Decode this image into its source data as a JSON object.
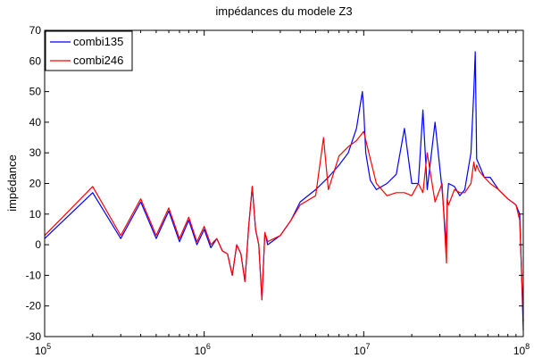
{
  "chart_data": {
    "type": "line",
    "title": "impédances du modele Z3",
    "xlabel": "",
    "ylabel": "impédance",
    "xscale": "log",
    "xlim": [
      100000,
      100000000
    ],
    "ylim": [
      -30,
      70
    ],
    "grid": false,
    "legend_position": "top-left",
    "xticks": [
      {
        "value": 100000,
        "base": "10",
        "exp": "5"
      },
      {
        "value": 1000000,
        "base": "10",
        "exp": "6"
      },
      {
        "value": 10000000,
        "base": "10",
        "exp": "7"
      },
      {
        "value": 100000000,
        "base": "10",
        "exp": "8"
      }
    ],
    "yticks": [
      -30,
      -20,
      -10,
      0,
      10,
      20,
      30,
      40,
      50,
      60,
      70
    ],
    "series": [
      {
        "name": "combi135",
        "color": "#0000ff",
        "x": [
          100000,
          200000,
          300000,
          400000,
          500000,
          600000,
          700000,
          800000,
          900000,
          1000000,
          1100000,
          1200000,
          1300000,
          1400000,
          1500000,
          1600000,
          1700000,
          1800000,
          1900000,
          2000000,
          2100000,
          2200000,
          2300000,
          2400000,
          2500000,
          3000000,
          3500000,
          4000000,
          5000000,
          6000000,
          7000000,
          8000000,
          9000000,
          9800000,
          10000000,
          10300000,
          11000000,
          12000000,
          14000000,
          16000000,
          18000000,
          20000000,
          22000000,
          23500000,
          25000000,
          28000000,
          31000000,
          33000000,
          33300000,
          34000000,
          37000000,
          40000000,
          43000000,
          47000000,
          49000000,
          50000000,
          51000000,
          53000000,
          57000000,
          62000000,
          70000000,
          80000000,
          90000000,
          95000000,
          97000000,
          100000000
        ],
        "y": [
          2,
          17,
          2,
          14,
          2,
          11,
          1,
          8,
          0,
          5,
          -1,
          2,
          -2,
          -3,
          -10,
          0,
          -3,
          -12,
          6,
          19,
          5,
          0,
          -18,
          4,
          0,
          3,
          8,
          14,
          18,
          22,
          26,
          30,
          38,
          50,
          44,
          30,
          21,
          18,
          20,
          23,
          38,
          20,
          20,
          44,
          18,
          40,
          18,
          -1,
          14,
          20,
          19,
          16,
          18,
          30,
          50,
          63,
          28,
          26,
          22,
          22,
          18,
          15,
          13,
          10,
          -5,
          -28
        ]
      },
      {
        "name": "combi246",
        "color": "#ff0000",
        "x": [
          100000,
          200000,
          300000,
          400000,
          500000,
          600000,
          700000,
          800000,
          900000,
          1000000,
          1100000,
          1200000,
          1300000,
          1400000,
          1500000,
          1600000,
          1700000,
          1800000,
          1900000,
          2000000,
          2100000,
          2200000,
          2300000,
          2400000,
          2500000,
          3000000,
          3500000,
          4000000,
          5000000,
          5600000,
          6000000,
          7000000,
          8000000,
          9000000,
          10000000,
          11000000,
          12000000,
          14000000,
          16000000,
          18000000,
          20000000,
          22000000,
          23500000,
          25000000,
          28000000,
          31000000,
          33000000,
          33300000,
          34000000,
          37000000,
          40000000,
          43000000,
          47000000,
          49000000,
          50000000,
          51000000,
          53000000,
          57000000,
          62000000,
          70000000,
          80000000,
          90000000,
          95000000,
          97000000,
          100000000
        ],
        "y": [
          3,
          19,
          3,
          15,
          3,
          12,
          2,
          9,
          1,
          6,
          0,
          2,
          -2,
          -3,
          -10,
          0,
          -3,
          -12,
          6,
          19,
          5,
          0,
          -18,
          4,
          1,
          3,
          8,
          13,
          16,
          35,
          18,
          29,
          32,
          34,
          37,
          28,
          20,
          16,
          17,
          17,
          16,
          20,
          17,
          30,
          14,
          20,
          -6,
          15,
          13,
          18,
          17,
          17,
          20,
          27,
          24,
          26,
          24,
          22,
          20,
          18,
          15,
          13,
          8,
          -5,
          -25
        ]
      }
    ]
  }
}
